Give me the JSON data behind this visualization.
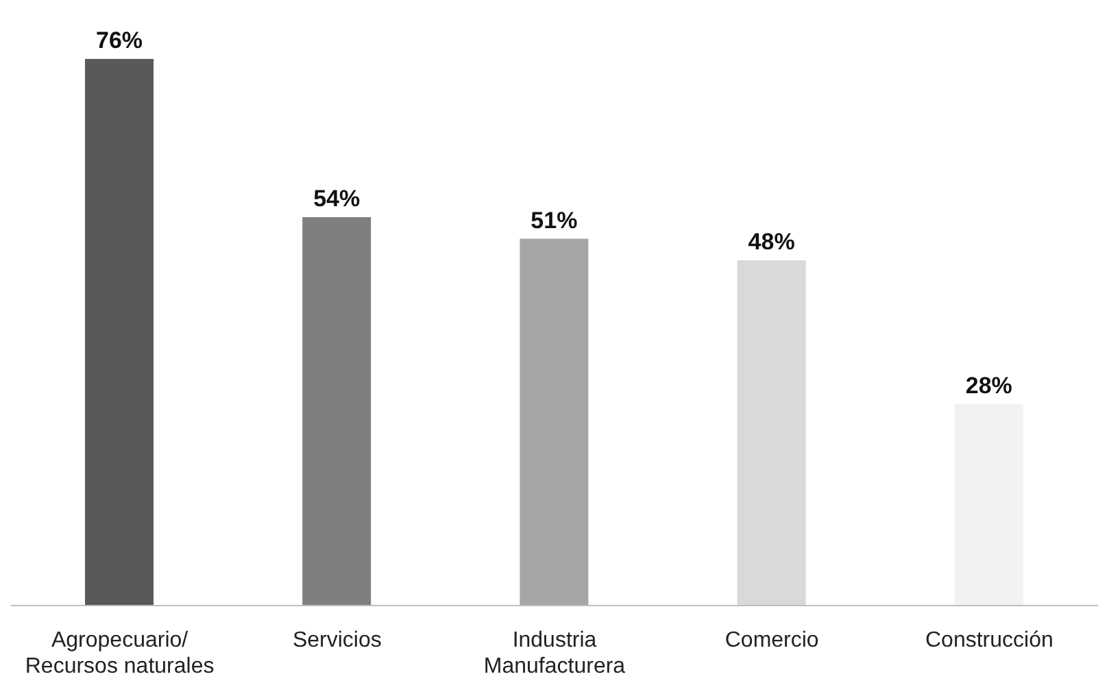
{
  "chart_data": {
    "type": "bar",
    "categories": [
      "Agropecuario/\nRecursos naturales",
      "Servicios",
      "Industria\nManufacturera",
      "Comercio",
      "Construcción"
    ],
    "values": [
      76,
      54,
      51,
      48,
      28
    ],
    "colors": [
      "#595959",
      "#7f7f7f",
      "#a6a6a6",
      "#d9d9d9",
      "#f2f2f2"
    ],
    "value_labels": [
      "76%",
      "54%",
      "51%",
      "48%",
      "28%"
    ],
    "grid": false,
    "legend": false
  }
}
